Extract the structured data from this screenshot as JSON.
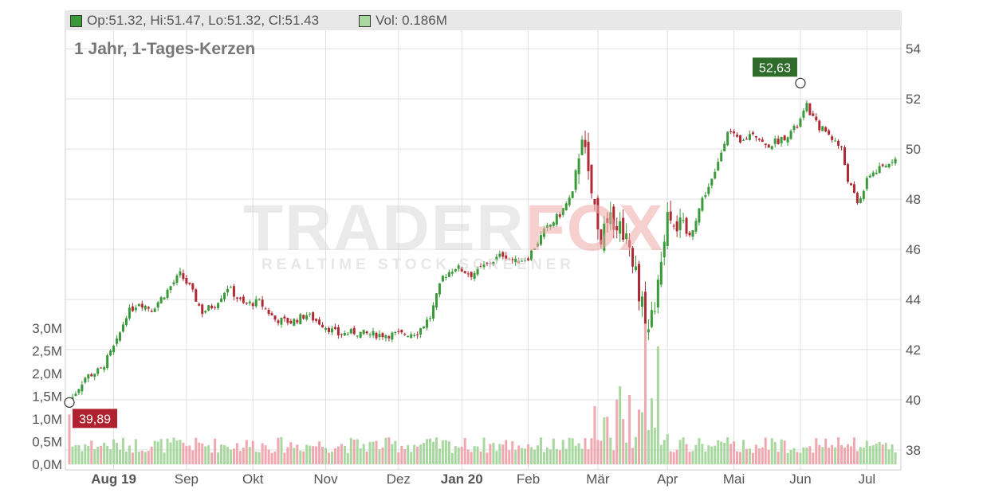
{
  "legend": {
    "ohlc_text": "Op:51.32, Hi:51.47, Lo:51.32, Cl:51.43",
    "ohlc_swatch_color": "#3a9a3a",
    "vol_text": "Vol: 0.186M",
    "vol_swatch_color": "#a8d8a0"
  },
  "subtitle": "1 Jahr, 1-Tages-Kerzen",
  "watermark": {
    "main": "TRADER",
    "accent": "FOX",
    "sub": "REALTIME STOCK SCREENER"
  },
  "colors": {
    "up": "#3a9a3a",
    "down": "#b02a35",
    "vol_up": "#a8d8a0",
    "vol_down": "#f0a8b0",
    "grid": "#e0e0e0"
  },
  "chart_data": {
    "type": "candlestick",
    "subtitle": "1 Jahr, 1-Tages-Kerzen",
    "price_axis": {
      "range": [
        37.2,
        55.5
      ],
      "ticks": [
        38,
        40,
        42,
        44,
        46,
        48,
        50,
        52,
        54
      ],
      "side": "right"
    },
    "volume_axis": {
      "range": [
        0,
        3.6
      ],
      "unit": "M",
      "ticks": [
        0,
        0.5,
        1.0,
        1.5,
        2.0,
        2.5,
        3.0
      ],
      "tick_labels": [
        "0,0M",
        "0,5M",
        "1,0M",
        "1,5M",
        "2,0M",
        "2,5M",
        "3,0M"
      ],
      "side": "left"
    },
    "x_tick_labels": [
      "Aug 19",
      "Sep",
      "Okt",
      "Nov",
      "Dez",
      "Jan 20",
      "Feb",
      "Mär",
      "Apr",
      "Mai",
      "Jun",
      "Jul"
    ],
    "x_tick_bold": [
      true,
      false,
      false,
      false,
      false,
      true,
      false,
      false,
      false,
      false,
      false,
      false
    ],
    "x_tick_index": [
      14,
      37,
      58,
      81,
      104,
      124,
      145,
      167,
      189,
      210,
      231,
      252
    ],
    "total_days": 262,
    "close_anchors": [
      [
        0,
        39.9
      ],
      [
        5,
        40.9
      ],
      [
        10,
        41.2
      ],
      [
        15,
        42.3
      ],
      [
        18,
        43.4
      ],
      [
        22,
        43.9
      ],
      [
        26,
        43.6
      ],
      [
        30,
        44.2
      ],
      [
        35,
        45.0
      ],
      [
        38,
        44.5
      ],
      [
        42,
        43.5
      ],
      [
        46,
        43.8
      ],
      [
        50,
        44.5
      ],
      [
        55,
        43.8
      ],
      [
        60,
        43.9
      ],
      [
        65,
        43.2
      ],
      [
        70,
        43.1
      ],
      [
        75,
        43.4
      ],
      [
        80,
        43.0
      ],
      [
        85,
        42.6
      ],
      [
        90,
        42.7
      ],
      [
        95,
        42.6
      ],
      [
        100,
        42.6
      ],
      [
        105,
        42.6
      ],
      [
        110,
        42.7
      ],
      [
        114,
        43.3
      ],
      [
        118,
        44.9
      ],
      [
        122,
        45.3
      ],
      [
        127,
        45.0
      ],
      [
        132,
        45.4
      ],
      [
        137,
        45.8
      ],
      [
        141,
        45.5
      ],
      [
        145,
        45.7
      ],
      [
        150,
        46.7
      ],
      [
        155,
        47.4
      ],
      [
        159,
        48.2
      ],
      [
        162,
        50.7
      ],
      [
        164,
        48.8
      ],
      [
        168,
        46.5
      ],
      [
        172,
        47.2
      ],
      [
        176,
        46.6
      ],
      [
        178,
        45.7
      ],
      [
        181,
        43.7
      ],
      [
        183,
        42.8
      ],
      [
        186,
        44.4
      ],
      [
        189,
        47.7
      ],
      [
        192,
        47.0
      ],
      [
        196,
        46.5
      ],
      [
        200,
        48.0
      ],
      [
        204,
        49.0
      ],
      [
        208,
        50.8
      ],
      [
        212,
        50.2
      ],
      [
        216,
        50.7
      ],
      [
        220,
        50.1
      ],
      [
        225,
        50.4
      ],
      [
        230,
        50.9
      ],
      [
        233,
        51.7
      ],
      [
        236,
        51.0
      ],
      [
        240,
        50.6
      ],
      [
        244,
        50.0
      ],
      [
        246,
        48.8
      ],
      [
        249,
        47.8
      ],
      [
        253,
        49.0
      ],
      [
        258,
        49.3
      ],
      [
        262,
        49.9
      ],
      [
        265,
        50.5
      ],
      [
        269,
        50.8
      ],
      [
        273,
        51.4
      ]
    ],
    "markers": [
      {
        "label": "39,89",
        "value": 39.89,
        "index": 0,
        "kind": "low"
      },
      {
        "label": "52,63",
        "value": 52.63,
        "index": 231,
        "kind": "high"
      }
    ]
  }
}
